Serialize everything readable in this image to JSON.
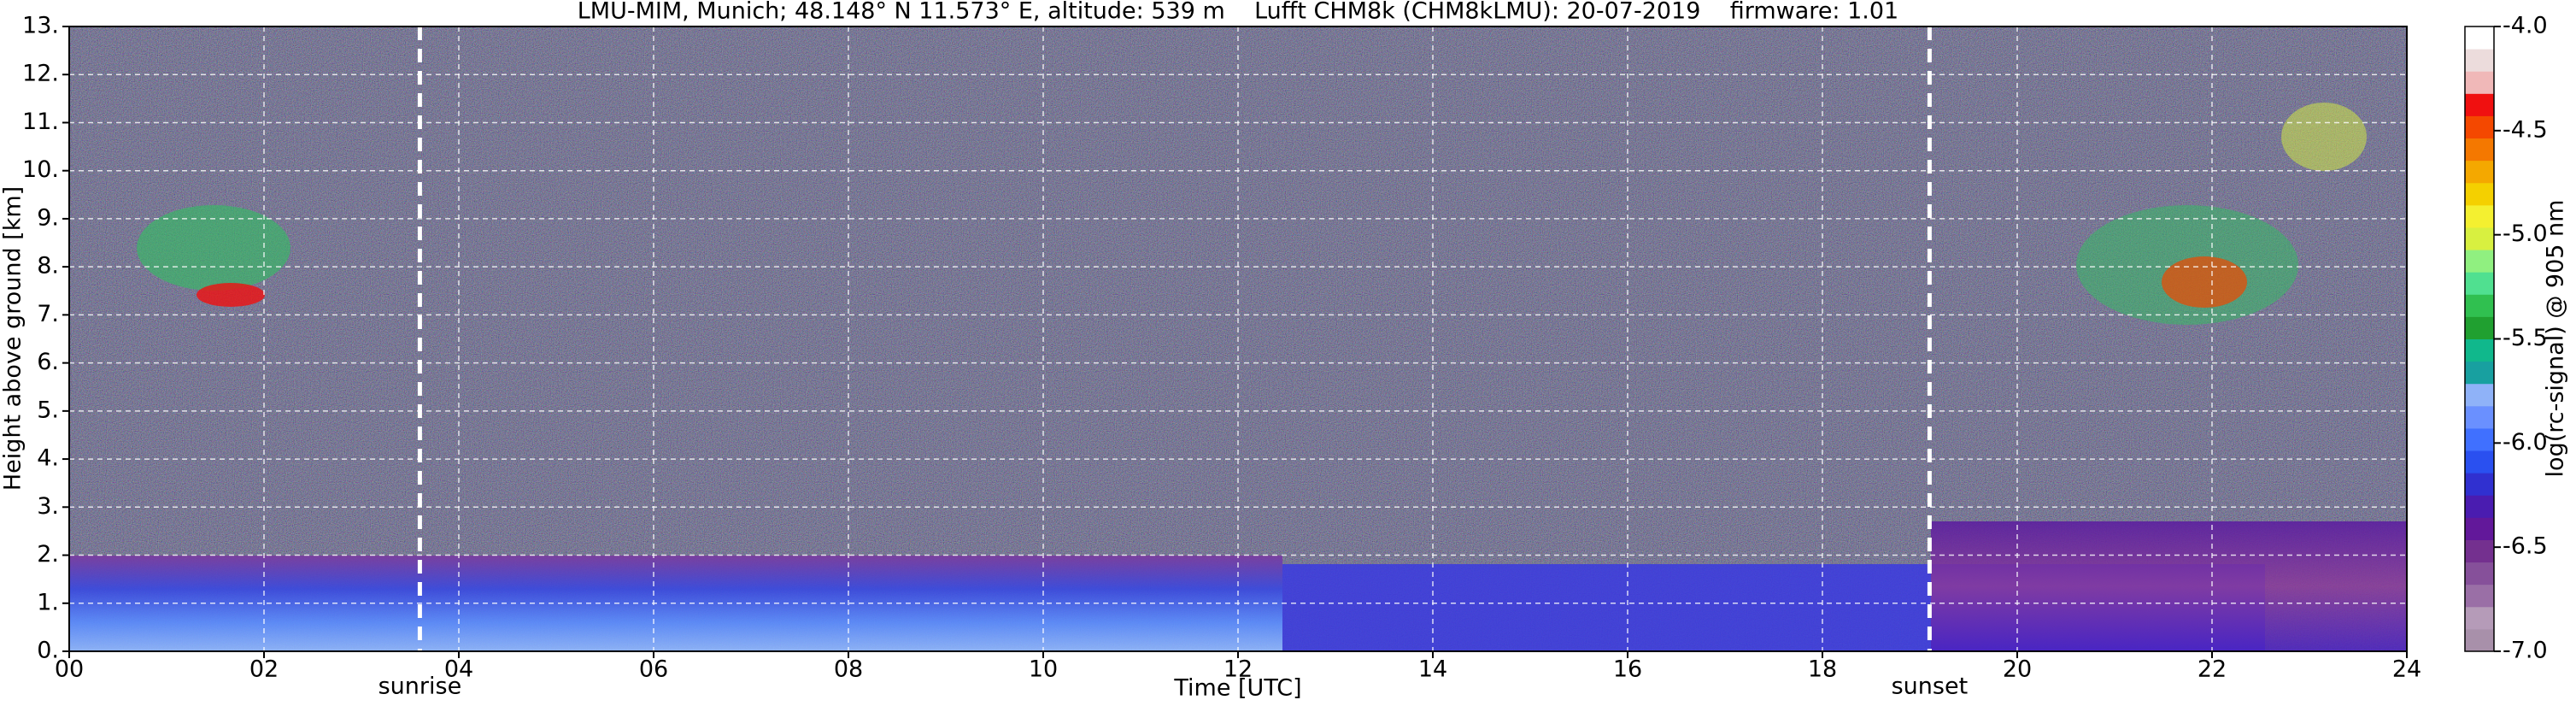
{
  "chart_data": {
    "type": "heatmap",
    "title": "LMU-MIM, Munich; 48.148° N 11.573° E, altitude: 539 m    Lufft CHM8k (CHM8kLMU): 20-07-2019    firmware: 1.01",
    "xlabel": "Time [UTC]",
    "ylabel": "Height above ground [km]",
    "xlim": [
      0,
      24
    ],
    "xticks": [
      {
        "value": 0,
        "label": "00"
      },
      {
        "value": 2,
        "label": "02"
      },
      {
        "value": 4,
        "label": "04"
      },
      {
        "value": 6,
        "label": "06"
      },
      {
        "value": 8,
        "label": "08"
      },
      {
        "value": 10,
        "label": "10"
      },
      {
        "value": 12,
        "label": "12"
      },
      {
        "value": 14,
        "label": "14"
      },
      {
        "value": 16,
        "label": "16"
      },
      {
        "value": 18,
        "label": "18"
      },
      {
        "value": 20,
        "label": "20"
      },
      {
        "value": 22,
        "label": "22"
      },
      {
        "value": 24,
        "label": "24"
      }
    ],
    "ylim": [
      0,
      13
    ],
    "yticks": [
      {
        "value": 0,
        "label": "0."
      },
      {
        "value": 1,
        "label": "1."
      },
      {
        "value": 2,
        "label": "2."
      },
      {
        "value": 3,
        "label": "3."
      },
      {
        "value": 4,
        "label": "4."
      },
      {
        "value": 5,
        "label": "5."
      },
      {
        "value": 6,
        "label": "6."
      },
      {
        "value": 7,
        "label": "7."
      },
      {
        "value": 8,
        "label": "8."
      },
      {
        "value": 9,
        "label": "9."
      },
      {
        "value": 10,
        "label": "10."
      },
      {
        "value": 11,
        "label": "11."
      },
      {
        "value": 12,
        "label": "12."
      },
      {
        "value": 13,
        "label": "13."
      }
    ],
    "grid": true,
    "annotations": [
      {
        "label": "sunrise",
        "x": 3.6
      },
      {
        "label": "sunset",
        "x": 19.1
      }
    ],
    "colorbar": {
      "label": "log(rc-signal) @ 905 nm",
      "lim": [
        -7,
        -4
      ],
      "ticks": [
        {
          "value": -4,
          "label": "-4.0"
        },
        -4.5,
        {
          "value": -5,
          "label": "-5.0"
        },
        -5.5,
        {
          "value": -6,
          "label": "-6.0"
        },
        -6.5,
        {
          "value": -7,
          "label": "-7.0"
        }
      ],
      "colors": [
        "#a890aa",
        "#b59bb8",
        "#9a6fa6",
        "#86509a",
        "#74308f",
        "#62189a",
        "#4a1cb0",
        "#3030d0",
        "#2a50f0",
        "#4070ff",
        "#6a90ff",
        "#8fb2f8",
        "#18a0a0",
        "#10b88c",
        "#20a030",
        "#30c050",
        "#50e090",
        "#90f080",
        "#d8f040",
        "#f4f030",
        "#f4d000",
        "#f4a800",
        "#f47800",
        "#f44800",
        "#f01010",
        "#f0b8b8",
        "#ecdcdc",
        "#ffffff"
      ]
    }
  }
}
